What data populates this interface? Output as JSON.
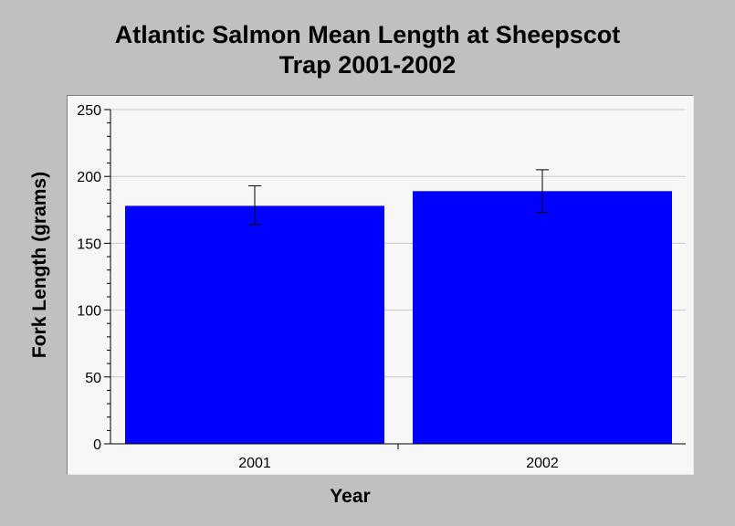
{
  "chart_data": {
    "type": "bar",
    "title_lines": [
      "Atlantic Salmon Mean Length at Sheepscot",
      "Trap 2001-2002"
    ],
    "xlabel": "Year",
    "ylabel": "Fork Length (grams)",
    "categories": [
      "2001",
      "2002"
    ],
    "values": [
      178,
      189
    ],
    "error_low": [
      164,
      173
    ],
    "error_high": [
      193,
      205
    ],
    "ylim": [
      0,
      250
    ],
    "yticks": [
      0,
      50,
      100,
      150,
      200,
      250
    ],
    "grid": true,
    "bar_color": "#0000ff"
  }
}
